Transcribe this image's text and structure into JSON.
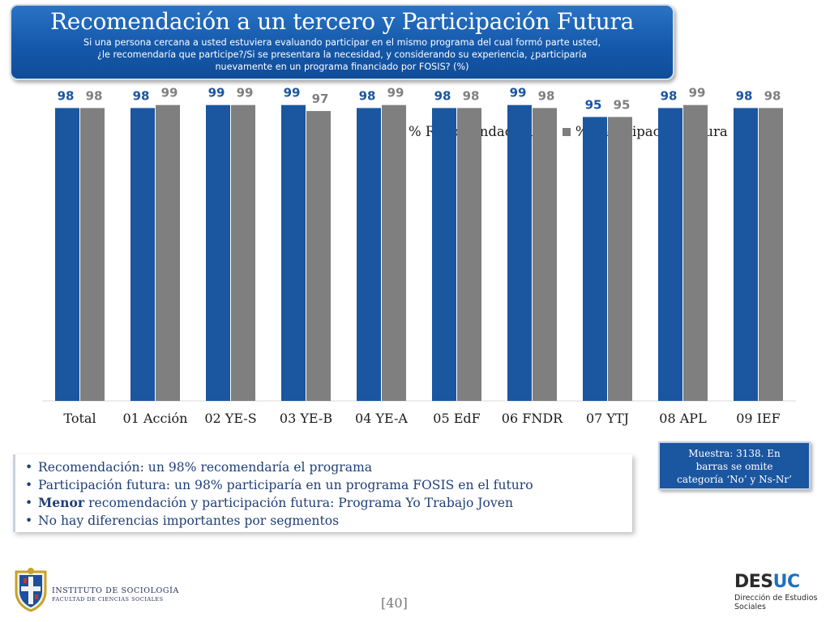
{
  "header": {
    "title": "Recomendación a un tercero y Participación Futura",
    "subtitle_line1": "Si una persona cercana a usted  estuviera evaluando participar en el mismo programa del cual formó parte usted,",
    "subtitle_line2": "¿le recomendaría que participe?/Si se presentara la necesidad, y considerando su experiencia, ¿participaría",
    "subtitle_line3": "nuevamente en un programa financiado por FOSIS? (%)"
  },
  "colors": {
    "series1": "#1b56a0",
    "series2": "#7f7f7f",
    "label1": "#1b56a0",
    "label2": "#808080"
  },
  "chart_data": {
    "type": "bar",
    "title": "",
    "xlabel": "",
    "ylabel": "",
    "ylim": [
      0,
      100
    ],
    "grid": false,
    "legend_position": "top-right",
    "categories": [
      "Total",
      "01 Acción",
      "02 YE-S",
      "03 YE-B",
      "04 YE-A",
      "05 EdF",
      "06 FNDR",
      "07 YTJ",
      "08 APL",
      "09 IEF"
    ],
    "series": [
      {
        "name": "% Recomendación",
        "values": [
          98,
          98,
          99,
          99,
          98,
          98,
          99,
          95,
          98,
          98
        ]
      },
      {
        "name": "% Participación futura",
        "values": [
          98,
          99,
          99,
          97,
          99,
          98,
          98,
          95,
          99,
          98
        ]
      }
    ]
  },
  "notes": {
    "item1": "Recomendación: un 98% recomendaría el programa",
    "item2": "Participación futura: un 98% participaría en un programa FOSIS en el futuro",
    "item3_strong": "Menor",
    "item3_rest": " recomendación y participación futura: Programa Yo Trabajo Joven",
    "item4": "No hay diferencias importantes por segmentos"
  },
  "sample": {
    "line1": "Muestra: 3138. En",
    "line2": "barras se omite",
    "line3": "categoría ‘No’ y Ns-Nr’"
  },
  "footer": {
    "inst_line1": "INSTITUTO DE SOCIOLOGÍA",
    "inst_line2": "FACULTAD DE CIENCIAS SOCIALES",
    "page": "[40]",
    "desuc_des": "DES",
    "desuc_uc": "UC",
    "desuc_sub1": "Dirección de Estudios",
    "desuc_sub2": "Sociales"
  }
}
